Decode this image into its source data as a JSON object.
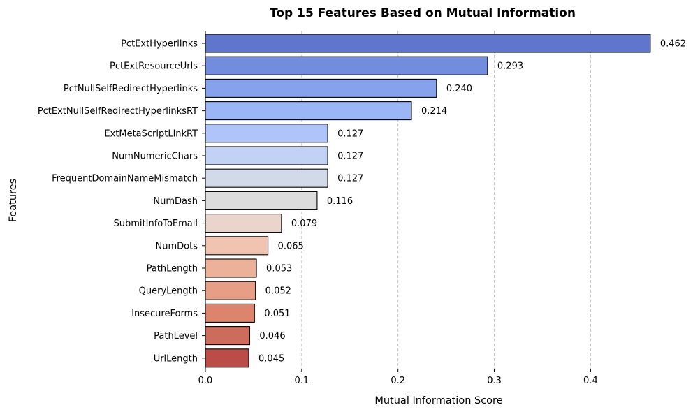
{
  "chart_data": {
    "type": "bar",
    "orientation": "horizontal",
    "title": "Top 15 Features Based on Mutual Information",
    "xlabel": "Mutual Information Score",
    "ylabel": "Features",
    "xlim": [
      0,
      0.485
    ],
    "xticks": [
      0.0,
      0.1,
      0.2,
      0.3,
      0.4
    ],
    "xtick_labels": [
      "0.0",
      "0.1",
      "0.2",
      "0.3",
      "0.4"
    ],
    "grid": "x dashed",
    "categories": [
      "PctExtHyperlinks",
      "PctExtResourceUrls",
      "PctNullSelfRedirectHyperlinks",
      "PctExtNullSelfRedirectHyperlinksRT",
      "ExtMetaScriptLinkRT",
      "NumNumericChars",
      "FrequentDomainNameMismatch",
      "NumDash",
      "SubmitInfoToEmail",
      "NumDots",
      "PathLength",
      "QueryLength",
      "InsecureForms",
      "PathLevel",
      "UrlLength"
    ],
    "values": [
      0.462,
      0.293,
      0.24,
      0.214,
      0.127,
      0.127,
      0.127,
      0.116,
      0.079,
      0.065,
      0.053,
      0.052,
      0.051,
      0.046,
      0.045
    ],
    "value_labels": [
      "0.462",
      "0.293",
      "0.240",
      "0.214",
      "0.127",
      "0.127",
      "0.127",
      "0.116",
      "0.079",
      "0.065",
      "0.053",
      "0.052",
      "0.051",
      "0.046",
      "0.045"
    ],
    "colors": [
      "#5f76cc",
      "#738dde",
      "#87a2ec",
      "#9bb5f5",
      "#afc5f9",
      "#c2d2f4",
      "#d2d9e8",
      "#dddcdc",
      "#e9d5cb",
      "#f0c4b1",
      "#ecb199",
      "#e69e87",
      "#dc846d",
      "#cd6c5d",
      "#bb4c48"
    ]
  }
}
